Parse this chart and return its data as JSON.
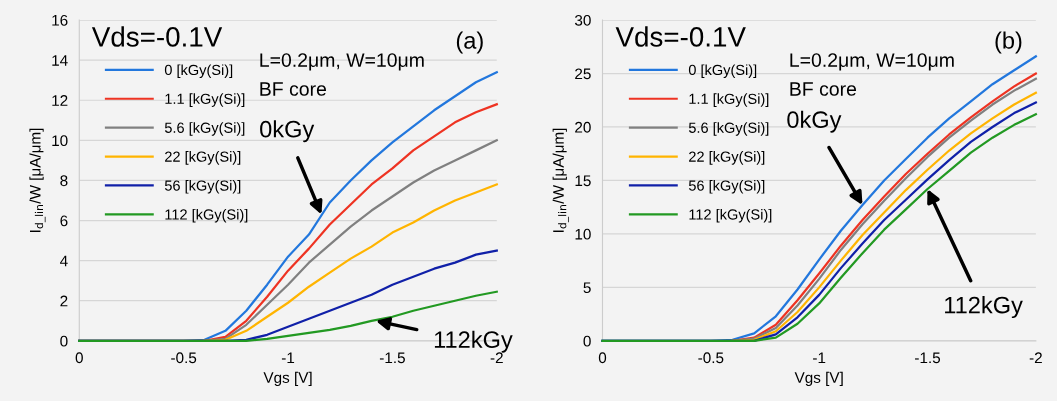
{
  "chart_data": [
    {
      "type": "line",
      "xlabel": "Vgs [V]",
      "ylabel": "I$_{d_lin}$/W [μA/μm]",
      "x": [
        0,
        -0.5,
        -0.6,
        -0.7,
        -0.8,
        -0.9,
        -1.0,
        -1.1,
        -1.2,
        -1.3,
        -1.4,
        -1.5,
        -1.6,
        -1.7,
        -1.8,
        -1.9,
        -2.0
      ],
      "xlim": [
        0,
        -2
      ],
      "xticks": [
        0,
        -0.5,
        -1,
        -1.5,
        -2
      ],
      "ylim": [
        0,
        16
      ],
      "yticks": [
        0,
        2,
        4,
        6,
        8,
        10,
        12,
        14,
        16
      ],
      "grid": "y",
      "legend": "top left",
      "line_style": "solid",
      "series": [
        {
          "name": "0 [kGy(Si)]",
          "color": "#2277dd",
          "values": [
            0,
            0,
            0.05,
            0.5,
            1.5,
            2.8,
            4.2,
            5.3,
            6.9,
            8.0,
            9.0,
            9.9,
            10.7,
            11.5,
            12.2,
            12.9,
            13.4
          ]
        },
        {
          "name": "1.1 [kGy(Si)]",
          "color": "#ee3322",
          "values": [
            0,
            0,
            0,
            0.2,
            1.0,
            2.2,
            3.5,
            4.6,
            5.8,
            6.8,
            7.8,
            8.6,
            9.5,
            10.2,
            10.9,
            11.4,
            11.8
          ]
        },
        {
          "name": "5.6 [kGy(Si)]",
          "color": "#808080",
          "values": [
            0,
            0,
            0,
            0.1,
            0.8,
            1.8,
            2.8,
            3.9,
            4.8,
            5.7,
            6.5,
            7.2,
            7.9,
            8.5,
            9.0,
            9.5,
            10.0
          ]
        },
        {
          "name": "22 [kGy(Si)]",
          "color": "#ffb400",
          "values": [
            null,
            null,
            0,
            0.05,
            0.5,
            1.2,
            1.9,
            2.7,
            3.4,
            4.1,
            4.7,
            5.4,
            5.9,
            6.5,
            7.0,
            7.4,
            7.8
          ]
        },
        {
          "name": "56 [kGy(Si)]",
          "color": "#1020a8",
          "values": [
            0,
            0,
            0,
            0,
            0.05,
            0.3,
            0.7,
            1.1,
            1.5,
            1.9,
            2.3,
            2.8,
            3.2,
            3.6,
            3.9,
            4.3,
            4.5
          ]
        },
        {
          "name": "112 [kGy(Si)]",
          "color": "#229922",
          "values": [
            0,
            0,
            0,
            0,
            0,
            0.1,
            0.25,
            0.4,
            0.55,
            0.75,
            1.0,
            1.2,
            1.5,
            1.75,
            2.0,
            2.25,
            2.45
          ]
        }
      ],
      "annotations": [
        "Vds=-0.1V",
        "(a)",
        "L=0.2μm, W=10μm",
        "BF core",
        {
          "text": "0kGy",
          "x": -1.16,
          "y": 6.3
        },
        {
          "text": "112kGy",
          "x": -1.42,
          "y": 1.0
        }
      ]
    },
    {
      "type": "line",
      "xlabel": "Vgs [V]",
      "ylabel": "I$_{d_lin}$/W [μA/μm]",
      "x": [
        0,
        -0.5,
        -0.6,
        -0.7,
        -0.8,
        -0.9,
        -1.0,
        -1.1,
        -1.2,
        -1.3,
        -1.4,
        -1.5,
        -1.6,
        -1.7,
        -1.8,
        -1.9,
        -2.0
      ],
      "xlim": [
        0,
        -2
      ],
      "xticks": [
        0,
        -0.5,
        -1,
        -1.5,
        -2
      ],
      "ylim": [
        0,
        30
      ],
      "yticks": [
        0,
        5,
        10,
        15,
        20,
        25,
        30
      ],
      "grid": "y",
      "legend": "top left",
      "line_style": "solid",
      "series": [
        {
          "name": "0 [kGy(Si)]",
          "color": "#2277dd",
          "values": [
            0,
            0,
            0.1,
            0.7,
            2.3,
            4.8,
            7.6,
            10.3,
            12.7,
            15.0,
            17.0,
            19.0,
            20.8,
            22.4,
            24.0,
            25.3,
            26.6
          ]
        },
        {
          "name": "1.1 [kGy(Si)]",
          "color": "#ee3322",
          "values": [
            null,
            null,
            0,
            0.3,
            1.5,
            3.8,
            6.3,
            8.9,
            11.3,
            13.5,
            15.6,
            17.5,
            19.3,
            20.9,
            22.4,
            23.8,
            25.0
          ]
        },
        {
          "name": "5.6 [kGy(Si)]",
          "color": "#808080",
          "values": [
            0,
            0,
            0,
            0.2,
            1.2,
            3.3,
            5.8,
            8.5,
            10.9,
            13.1,
            15.2,
            17.2,
            19.0,
            20.6,
            22.1,
            23.4,
            24.5
          ]
        },
        {
          "name": "22 [kGy(Si)]",
          "color": "#ffb400",
          "values": [
            null,
            null,
            0,
            0.1,
            0.9,
            2.7,
            5.0,
            7.5,
            9.9,
            12.0,
            14.1,
            16.0,
            17.8,
            19.4,
            20.8,
            22.1,
            23.2
          ]
        },
        {
          "name": "56 [kGy(Si)]",
          "color": "#1020a8",
          "values": [
            0,
            0,
            0,
            0,
            0.6,
            2.2,
            4.3,
            6.8,
            9.1,
            11.3,
            13.2,
            15.1,
            16.9,
            18.6,
            20.0,
            21.3,
            22.3
          ]
        },
        {
          "name": "112 [kGy(Si)]",
          "color": "#229922",
          "values": [
            0,
            0,
            0,
            0,
            0.3,
            1.6,
            3.5,
            5.9,
            8.2,
            10.4,
            12.3,
            14.2,
            15.9,
            17.6,
            19.0,
            20.2,
            21.2
          ]
        }
      ],
      "annotations": [
        "Vds=-0.1V",
        "(b)",
        "L=0.2μm, W=10μm",
        "BF core",
        {
          "text": "0kGy",
          "x": -1.2,
          "y": 12.7
        },
        {
          "text": "112kGy",
          "x": -1.5,
          "y": 14.2
        }
      ]
    }
  ]
}
